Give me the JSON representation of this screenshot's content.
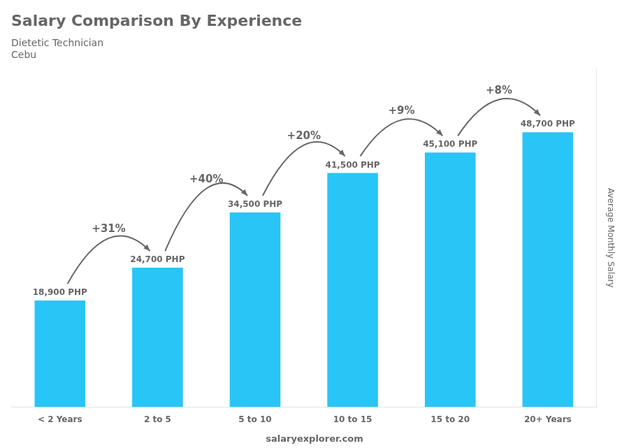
{
  "chart_data": {
    "type": "bar",
    "title": "Salary Comparison By Experience",
    "subtitle": "Dietetic Technician",
    "annotations": [
      "Cebu",
      "salaryexplorer.com"
    ],
    "ylabel": "Average Monthly Salary",
    "categories": [
      "< 2 Years",
      "2 to 5",
      "5 to 10",
      "10 to 15",
      "15 to 20",
      "20+ Years"
    ],
    "values": [
      18900,
      24700,
      34500,
      41500,
      45100,
      48700
    ],
    "value_labels": [
      "18,900 PHP",
      "24,700 PHP",
      "34,500 PHP",
      "41,500 PHP",
      "45,100 PHP",
      "48,700 PHP"
    ],
    "data_labels": true,
    "change_labels": [
      "+31%",
      "+40%",
      "+20%",
      "+9%",
      "+8%"
    ],
    "color": "#29c5f6",
    "ylim": [
      0,
      60000
    ],
    "tick_labels": "x",
    "grid": false
  }
}
